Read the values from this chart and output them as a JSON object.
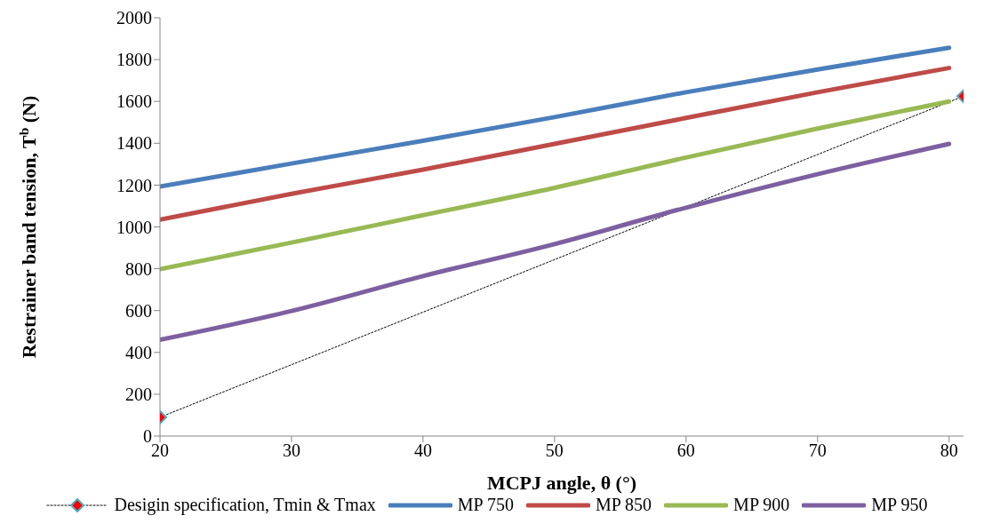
{
  "chart_data": {
    "type": "line",
    "xlabel": "MCPJ angle, θ (°)",
    "ylabel": "Restrainer band tension, T$^{b}$ (N)",
    "xlim": [
      20,
      81.1
    ],
    "xticks": [
      20,
      30,
      40,
      50,
      60,
      70,
      80
    ],
    "ylim": [
      0,
      2000
    ],
    "yticks": [
      0,
      200,
      400,
      600,
      800,
      1000,
      1200,
      1400,
      1600,
      1800,
      2000
    ],
    "grid": false,
    "legend": "bottom",
    "marker": "none",
    "line_style": "solid",
    "x": [
      20,
      30,
      40,
      50,
      60,
      70,
      80
    ],
    "series": [
      {
        "name": "Desigin specification, Tmin & Tmax",
        "color": "#000000",
        "x": [
          20,
          81.1
        ],
        "values": [
          90,
          1625
        ],
        "marker": "diamond",
        "line_style": "dotted"
      },
      {
        "name": "MP 750",
        "color": "#4a7ebb",
        "values": [
          1193,
          1303,
          1412,
          1525,
          1644,
          1753,
          1857
        ]
      },
      {
        "name": "MP 850",
        "color": "#be4b48",
        "values": [
          1035,
          1158,
          1274,
          1397,
          1521,
          1644,
          1760
        ]
      },
      {
        "name": "MP 900",
        "color": "#98b954",
        "values": [
          798,
          925,
          1056,
          1187,
          1332,
          1470,
          1600
        ]
      },
      {
        "name": "MP 950",
        "color": "#7d60a0",
        "values": [
          460,
          598,
          765,
          918,
          1092,
          1252,
          1397
        ]
      }
    ]
  }
}
